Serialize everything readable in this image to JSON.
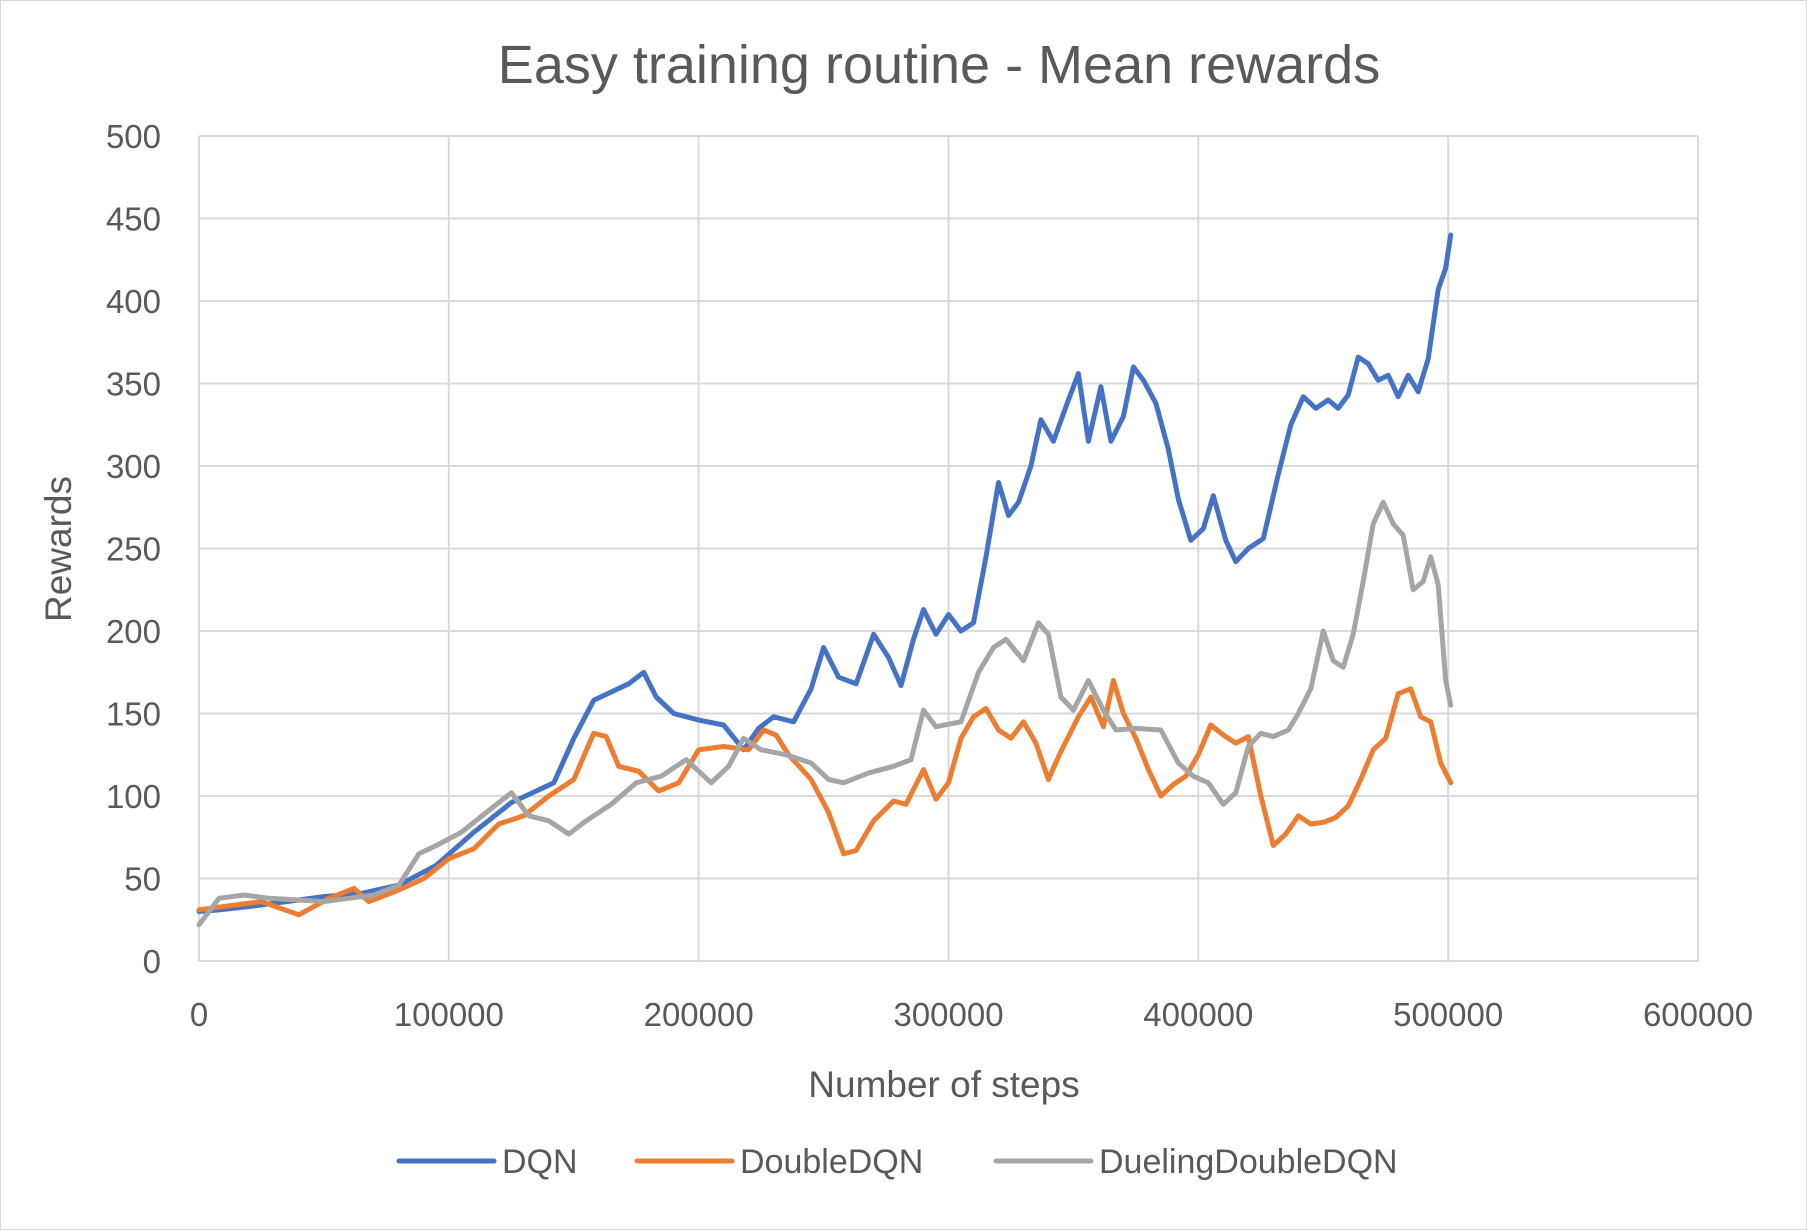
{
  "chart_data": {
    "type": "line",
    "title": "Easy training routine - Mean rewards",
    "xlabel": "Number of steps",
    "ylabel": "Rewards",
    "xlim": [
      0,
      600000
    ],
    "ylim": [
      0,
      500
    ],
    "x_ticks": [
      "0",
      "100000",
      "200000",
      "300000",
      "400000",
      "500000",
      "600000"
    ],
    "y_ticks": [
      "0",
      "50",
      "100",
      "150",
      "200",
      "250",
      "300",
      "350",
      "400",
      "450",
      "500"
    ],
    "grid": true,
    "legend_position": "bottom",
    "series": [
      {
        "name": "DQN",
        "color": "#4472C4",
        "points": [
          [
            0,
            30
          ],
          [
            8000,
            31
          ],
          [
            20000,
            33
          ],
          [
            35000,
            36
          ],
          [
            50000,
            39
          ],
          [
            65000,
            41
          ],
          [
            80000,
            46
          ],
          [
            95000,
            58
          ],
          [
            110000,
            78
          ],
          [
            125000,
            96
          ],
          [
            135000,
            103
          ],
          [
            142000,
            108
          ],
          [
            150000,
            135
          ],
          [
            158000,
            158
          ],
          [
            165000,
            163
          ],
          [
            172000,
            168
          ],
          [
            178000,
            175
          ],
          [
            183000,
            160
          ],
          [
            190000,
            150
          ],
          [
            200000,
            146
          ],
          [
            210000,
            143
          ],
          [
            218000,
            128
          ],
          [
            224000,
            141
          ],
          [
            230000,
            148
          ],
          [
            238000,
            145
          ],
          [
            245000,
            165
          ],
          [
            250000,
            190
          ],
          [
            256000,
            172
          ],
          [
            263000,
            168
          ],
          [
            270000,
            198
          ],
          [
            276000,
            184
          ],
          [
            281000,
            167
          ],
          [
            286000,
            195
          ],
          [
            290000,
            213
          ],
          [
            295000,
            198
          ],
          [
            300000,
            210
          ],
          [
            305000,
            200
          ],
          [
            310000,
            205
          ],
          [
            315000,
            245
          ],
          [
            320000,
            290
          ],
          [
            324000,
            270
          ],
          [
            328000,
            278
          ],
          [
            333000,
            300
          ],
          [
            337000,
            328
          ],
          [
            342000,
            315
          ],
          [
            348000,
            340
          ],
          [
            352000,
            356
          ],
          [
            356000,
            315
          ],
          [
            361000,
            348
          ],
          [
            365000,
            315
          ],
          [
            370000,
            330
          ],
          [
            374000,
            360
          ],
          [
            378000,
            352
          ],
          [
            383000,
            338
          ],
          [
            388000,
            310
          ],
          [
            392000,
            280
          ],
          [
            397000,
            255
          ],
          [
            402000,
            262
          ],
          [
            406000,
            282
          ],
          [
            411000,
            255
          ],
          [
            415000,
            242
          ],
          [
            420000,
            250
          ],
          [
            426000,
            256
          ],
          [
            432000,
            295
          ],
          [
            437000,
            325
          ],
          [
            442000,
            342
          ],
          [
            447000,
            335
          ],
          [
            452000,
            340
          ],
          [
            456000,
            335
          ],
          [
            460000,
            343
          ],
          [
            464000,
            366
          ],
          [
            468000,
            362
          ],
          [
            472000,
            352
          ],
          [
            476000,
            355
          ],
          [
            480000,
            342
          ],
          [
            484000,
            355
          ],
          [
            488000,
            345
          ],
          [
            492000,
            365
          ],
          [
            496000,
            407
          ],
          [
            499000,
            420
          ],
          [
            501000,
            440
          ]
        ]
      },
      {
        "name": "DoubleDQN",
        "color": "#ED7D31",
        "points": [
          [
            0,
            31
          ],
          [
            10000,
            33
          ],
          [
            25000,
            36
          ],
          [
            40000,
            28
          ],
          [
            52000,
            38
          ],
          [
            62000,
            44
          ],
          [
            68000,
            36
          ],
          [
            80000,
            43
          ],
          [
            90000,
            50
          ],
          [
            100000,
            62
          ],
          [
            110000,
            68
          ],
          [
            120000,
            83
          ],
          [
            130000,
            88
          ],
          [
            140000,
            100
          ],
          [
            150000,
            110
          ],
          [
            158000,
            138
          ],
          [
            163000,
            136
          ],
          [
            168000,
            118
          ],
          [
            176000,
            115
          ],
          [
            184000,
            103
          ],
          [
            192000,
            108
          ],
          [
            200000,
            128
          ],
          [
            210000,
            130
          ],
          [
            220000,
            128
          ],
          [
            226000,
            140
          ],
          [
            231000,
            137
          ],
          [
            236000,
            125
          ],
          [
            245000,
            110
          ],
          [
            252000,
            90
          ],
          [
            258000,
            65
          ],
          [
            263000,
            67
          ],
          [
            270000,
            85
          ],
          [
            278000,
            97
          ],
          [
            283000,
            95
          ],
          [
            290000,
            116
          ],
          [
            295000,
            98
          ],
          [
            300000,
            108
          ],
          [
            305000,
            135
          ],
          [
            310000,
            148
          ],
          [
            315000,
            153
          ],
          [
            320000,
            140
          ],
          [
            325000,
            135
          ],
          [
            330000,
            145
          ],
          [
            335000,
            132
          ],
          [
            340000,
            110
          ],
          [
            345000,
            127
          ],
          [
            352000,
            148
          ],
          [
            357000,
            160
          ],
          [
            362000,
            142
          ],
          [
            366000,
            170
          ],
          [
            370000,
            150
          ],
          [
            375000,
            135
          ],
          [
            380000,
            116
          ],
          [
            385000,
            100
          ],
          [
            390000,
            107
          ],
          [
            395000,
            112
          ],
          [
            400000,
            125
          ],
          [
            405000,
            143
          ],
          [
            410000,
            137
          ],
          [
            415000,
            132
          ],
          [
            420000,
            136
          ],
          [
            425000,
            100
          ],
          [
            430000,
            70
          ],
          [
            435000,
            77
          ],
          [
            440000,
            88
          ],
          [
            445000,
            83
          ],
          [
            450000,
            84
          ],
          [
            455000,
            87
          ],
          [
            460000,
            94
          ],
          [
            465000,
            110
          ],
          [
            470000,
            128
          ],
          [
            475000,
            135
          ],
          [
            480000,
            162
          ],
          [
            485000,
            165
          ],
          [
            489000,
            148
          ],
          [
            493000,
            145
          ],
          [
            497000,
            120
          ],
          [
            501000,
            108
          ]
        ]
      },
      {
        "name": "DuelingDoubleDQN",
        "color": "#A5A5A5",
        "points": [
          [
            0,
            22
          ],
          [
            8000,
            38
          ],
          [
            18000,
            40
          ],
          [
            28000,
            38
          ],
          [
            40000,
            37
          ],
          [
            50000,
            36
          ],
          [
            60000,
            38
          ],
          [
            70000,
            40
          ],
          [
            80000,
            46
          ],
          [
            88000,
            65
          ],
          [
            95000,
            70
          ],
          [
            105000,
            78
          ],
          [
            115000,
            90
          ],
          [
            125000,
            102
          ],
          [
            132000,
            88
          ],
          [
            140000,
            85
          ],
          [
            148000,
            77
          ],
          [
            155000,
            85
          ],
          [
            165000,
            95
          ],
          [
            175000,
            108
          ],
          [
            185000,
            112
          ],
          [
            195000,
            122
          ],
          [
            205000,
            108
          ],
          [
            212000,
            118
          ],
          [
            218000,
            135
          ],
          [
            225000,
            128
          ],
          [
            235000,
            125
          ],
          [
            245000,
            120
          ],
          [
            252000,
            110
          ],
          [
            258000,
            108
          ],
          [
            268000,
            114
          ],
          [
            278000,
            118
          ],
          [
            285000,
            122
          ],
          [
            290000,
            152
          ],
          [
            295000,
            142
          ],
          [
            305000,
            145
          ],
          [
            312000,
            175
          ],
          [
            318000,
            190
          ],
          [
            323000,
            195
          ],
          [
            330000,
            182
          ],
          [
            336000,
            205
          ],
          [
            340000,
            198
          ],
          [
            345000,
            160
          ],
          [
            350000,
            152
          ],
          [
            356000,
            170
          ],
          [
            362000,
            152
          ],
          [
            367000,
            140
          ],
          [
            375000,
            141
          ],
          [
            385000,
            140
          ],
          [
            392000,
            120
          ],
          [
            398000,
            112
          ],
          [
            404000,
            108
          ],
          [
            410000,
            95
          ],
          [
            415000,
            102
          ],
          [
            420000,
            130
          ],
          [
            425000,
            138
          ],
          [
            430000,
            136
          ],
          [
            436000,
            140
          ],
          [
            440000,
            150
          ],
          [
            445000,
            165
          ],
          [
            450000,
            200
          ],
          [
            454000,
            182
          ],
          [
            458000,
            178
          ],
          [
            462000,
            198
          ],
          [
            466000,
            230
          ],
          [
            470000,
            265
          ],
          [
            474000,
            278
          ],
          [
            478000,
            265
          ],
          [
            482000,
            258
          ],
          [
            486000,
            225
          ],
          [
            490000,
            230
          ],
          [
            493000,
            245
          ],
          [
            496000,
            228
          ],
          [
            499000,
            170
          ],
          [
            501000,
            155
          ]
        ]
      }
    ]
  }
}
